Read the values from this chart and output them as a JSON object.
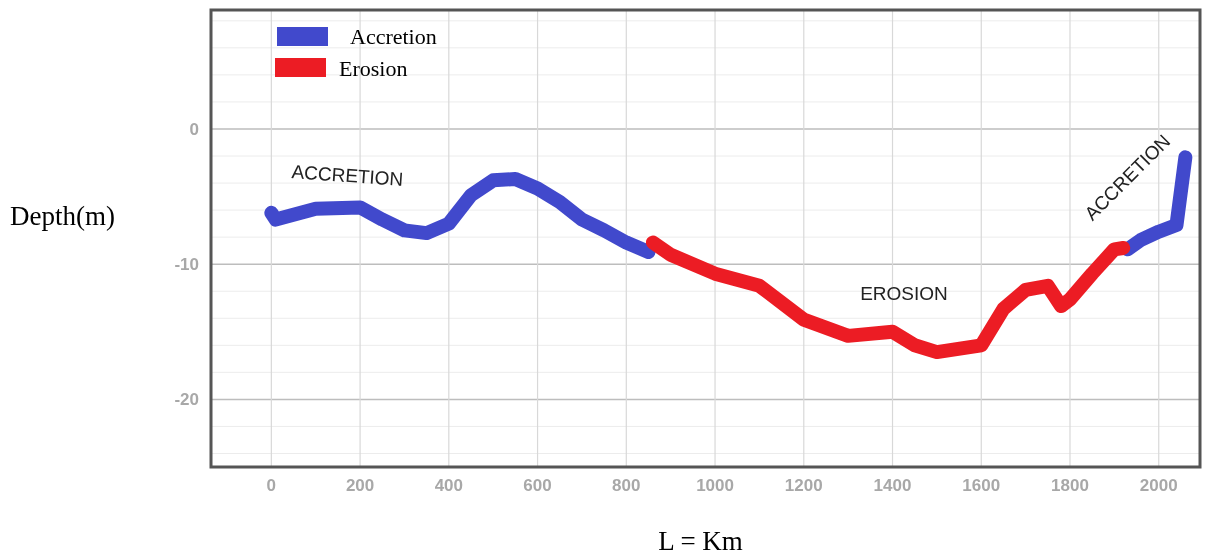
{
  "chart_data": {
    "type": "line",
    "xlabel": "L = Km",
    "ylabel": "Depth(m)",
    "xlim": [
      -136,
      2093
    ],
    "ylim": [
      -25,
      8.8
    ],
    "xticks": [
      0,
      200,
      400,
      600,
      800,
      1000,
      1200,
      1400,
      1600,
      1800,
      2000
    ],
    "yticks": [
      {
        "value": -24,
        "label": null
      },
      {
        "value": -22,
        "label": null
      },
      -20,
      {
        "value": -18,
        "label": null
      },
      {
        "value": -16,
        "label": null
      },
      {
        "value": -14,
        "label": null
      },
      {
        "value": -12,
        "label": null
      },
      -10,
      {
        "value": -8,
        "label": null
      },
      {
        "value": -6,
        "label": null
      },
      {
        "value": -4,
        "label": null
      },
      {
        "value": -2,
        "label": null
      },
      0,
      {
        "value": 2,
        "label": null
      },
      {
        "value": 4,
        "label": null
      },
      {
        "value": 6,
        "label": null
      },
      {
        "value": 8,
        "label": null
      }
    ],
    "grid": true,
    "legend": "top left",
    "line_style": "solid",
    "series": [
      {
        "name": "Accretion",
        "color": "#4149cc",
        "x": [
          0,
          10,
          100,
          200,
          250,
          300,
          350,
          400,
          450,
          500,
          550,
          600,
          650,
          700,
          750,
          800,
          850,
          null,
          1930,
          1960,
          2000,
          2040,
          2060
        ],
        "values": [
          -6.2,
          -6.7,
          -5.9,
          -5.8,
          -6.7,
          -7.5,
          -7.7,
          -7.0,
          -4.9,
          -3.8,
          -3.7,
          -4.4,
          -5.4,
          -6.7,
          -7.5,
          -8.4,
          -9.1,
          null,
          -8.9,
          -8.2,
          -7.6,
          -7.1,
          -2.1
        ]
      },
      {
        "name": "Erosion",
        "color": "#ec1c24",
        "x": [
          860,
          900,
          1000,
          1100,
          1200,
          1300,
          1400,
          1450,
          1500,
          1600,
          1650,
          1700,
          1750,
          1780,
          1800,
          1850,
          1900,
          1920
        ],
        "values": [
          -8.4,
          -9.3,
          -10.7,
          -11.6,
          -14.1,
          -15.3,
          -15.0,
          -16.0,
          -16.5,
          -16.0,
          -13.3,
          -11.9,
          -11.6,
          -13.1,
          -12.6,
          -10.7,
          -8.9,
          -8.8
        ]
      }
    ],
    "annotations": [
      "ACCRETION",
      "EROSION",
      "ACCRETION"
    ]
  }
}
